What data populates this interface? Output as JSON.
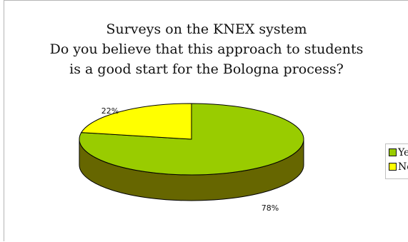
{
  "chart_data": {
    "type": "pie",
    "title": [
      "Surveys on the KNEX system",
      "Do you believe that this approach to students",
      "is a good start for the Bologna process?"
    ],
    "categories": [
      "Yes",
      "No"
    ],
    "values": [
      78,
      22
    ],
    "value_labels": [
      "78%",
      "22%"
    ],
    "colors": [
      "#99cc00",
      "#ffff00"
    ],
    "side_colors": [
      "#666600",
      "#999900"
    ],
    "style": "3d",
    "legend_position": "right"
  }
}
